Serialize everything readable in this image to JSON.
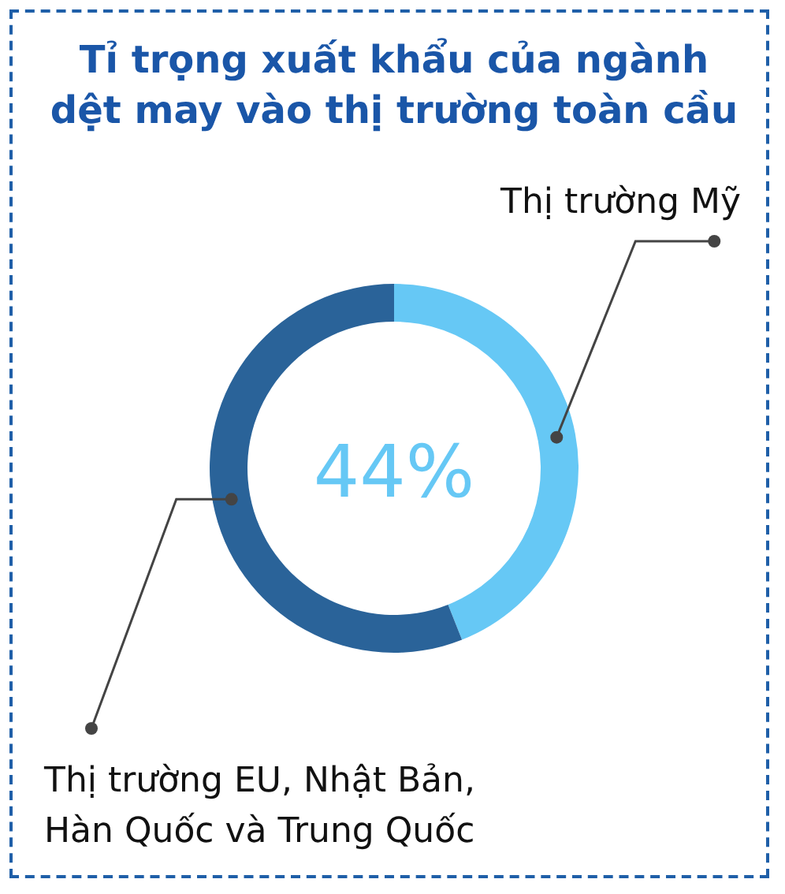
{
  "chart_data": {
    "type": "donut",
    "title": "Tỉ trọng xuất khẩu của ngành dệt may vào thị trường toàn cầu",
    "categories": [
      "Thị trường Mỹ",
      "Thị trường EU, Nhật Bản, Hàn Quốc và Trung Quốc"
    ],
    "values": [
      44,
      56
    ],
    "colors": [
      "#66c8f5",
      "#2a6399"
    ],
    "annotations": [
      "44%"
    ]
  }
}
